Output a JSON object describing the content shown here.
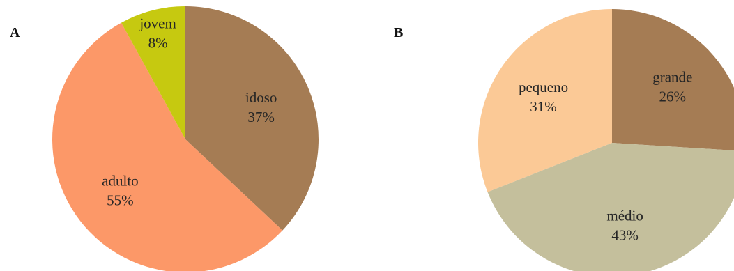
{
  "panel_letters": [
    "A",
    "B"
  ],
  "chart_data": [
    {
      "type": "pie",
      "panel": "A",
      "categories": [
        "idoso",
        "adulto",
        "jovem"
      ],
      "values": [
        37,
        55,
        8
      ],
      "value_labels": [
        "37%",
        "55%",
        "8%"
      ],
      "colors": [
        "#a57c54",
        "#fc9868",
        "#c6c910"
      ],
      "start": "12 o'clock",
      "direction": "clockwise",
      "legend": "none"
    },
    {
      "type": "pie",
      "panel": "B",
      "categories": [
        "grande",
        "médio",
        "pequeno"
      ],
      "values": [
        26,
        43,
        31
      ],
      "value_labels": [
        "26%",
        "43%",
        "31%"
      ],
      "colors": [
        "#a57c54",
        "#c4bf9c",
        "#fbc996"
      ],
      "start": "12 o'clock",
      "direction": "clockwise",
      "legend": "none"
    }
  ]
}
